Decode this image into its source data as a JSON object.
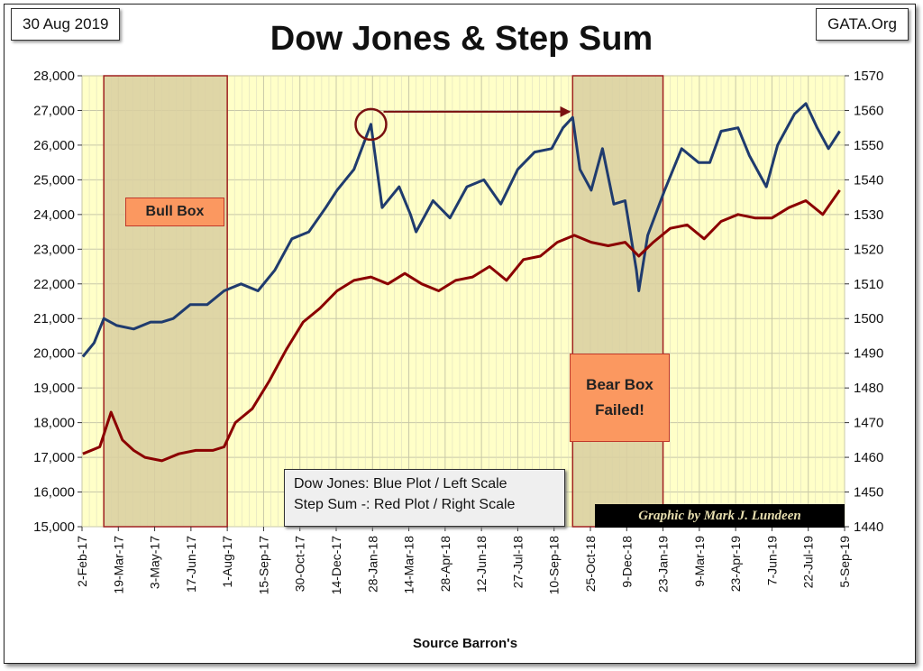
{
  "header": {
    "date": "30 Aug 2019",
    "source_tag": "GATA.Org",
    "title": "Dow Jones & Step Sum"
  },
  "colors": {
    "plot_background": "#ffffc8",
    "box_fill": "#d9cfa0",
    "box_border": "#a02020",
    "dow_line": "#1f3b6e",
    "step_sum_line": "#8b0000",
    "label_fill": "#fb9860"
  },
  "annotations": {
    "bull_box": "Bull Box",
    "bear_box_line1": "Bear Box",
    "bear_box_line2": "Failed!",
    "legend_line1": "Dow Jones: Blue Plot / Left Scale",
    "legend_line2": "Step Sum -: Red Plot / Right Scale",
    "credit": "Graphic by Mark J. Lundeen"
  },
  "chart_data": {
    "type": "line",
    "title": "Dow Jones & Step Sum",
    "xlabel": "Source Barron's",
    "ylabel_left": "",
    "ylabel_right": "",
    "grid": true,
    "x_tick_labels": [
      "2-Feb-17",
      "19-Mar-17",
      "3-May-17",
      "17-Jun-17",
      "1-Aug-17",
      "15-Sep-17",
      "30-Oct-17",
      "14-Dec-17",
      "28-Jan-18",
      "14-Mar-18",
      "28-Apr-18",
      "12-Jun-18",
      "27-Jul-18",
      "10-Sep-18",
      "25-Oct-18",
      "9-Dec-18",
      "23-Jan-19",
      "9-Mar-19",
      "23-Apr-19",
      "7-Jun-19",
      "22-Jul-19",
      "5-Sep-19"
    ],
    "x_range": [
      "2017-02-02",
      "2019-09-05"
    ],
    "ylim_left": [
      15000,
      28000
    ],
    "ylim_right": [
      1440,
      1570
    ],
    "y_ticks_left": [
      "15,000",
      "16,000",
      "17,000",
      "18,000",
      "19,000",
      "20,000",
      "21,000",
      "22,000",
      "23,000",
      "24,000",
      "25,000",
      "26,000",
      "27,000",
      "28,000"
    ],
    "y_ticks_right": [
      "1440",
      "1450",
      "1460",
      "1470",
      "1480",
      "1490",
      "1500",
      "1510",
      "1520",
      "1530",
      "1540",
      "1550",
      "1560",
      "1570"
    ],
    "shaded_regions": [
      {
        "name": "Bull Box",
        "start": "2017-03-01",
        "end": "2017-08-01"
      },
      {
        "name": "Bear Box Failed!",
        "start": "2018-10-03",
        "end": "2019-01-23"
      }
    ],
    "highlight": {
      "circle_at": "2018-01-26",
      "circle_value": 26600,
      "arrow_to": "2018-10-01",
      "arrow_value": 26700
    },
    "series": [
      {
        "name": "Dow Jones",
        "axis": "left",
        "dates": [
          "2017-02-03",
          "2017-02-17",
          "2017-03-01",
          "2017-03-17",
          "2017-04-07",
          "2017-04-28",
          "2017-05-12",
          "2017-05-26",
          "2017-06-16",
          "2017-07-07",
          "2017-07-28",
          "2017-08-18",
          "2017-09-08",
          "2017-09-29",
          "2017-10-20",
          "2017-11-10",
          "2017-12-01",
          "2017-12-15",
          "2018-01-05",
          "2018-01-26",
          "2018-02-09",
          "2018-03-02",
          "2018-03-16",
          "2018-03-23",
          "2018-04-13",
          "2018-05-04",
          "2018-05-25",
          "2018-06-15",
          "2018-07-06",
          "2018-07-27",
          "2018-08-17",
          "2018-09-07",
          "2018-09-21",
          "2018-10-03",
          "2018-10-12",
          "2018-10-26",
          "2018-11-09",
          "2018-11-23",
          "2018-12-07",
          "2018-12-21",
          "2018-12-24",
          "2019-01-04",
          "2019-01-25",
          "2019-02-15",
          "2019-03-08",
          "2019-03-22",
          "2019-04-05",
          "2019-04-26",
          "2019-05-10",
          "2019-05-31",
          "2019-06-14",
          "2019-07-05",
          "2019-07-19",
          "2019-08-02",
          "2019-08-16",
          "2019-08-30"
        ],
        "values": [
          19900,
          20300,
          21000,
          20800,
          20700,
          20900,
          20900,
          21000,
          21400,
          21400,
          21800,
          22000,
          21800,
          22400,
          23300,
          23500,
          24200,
          24700,
          25300,
          26600,
          24200,
          24800,
          24000,
          23500,
          24400,
          23900,
          24800,
          25000,
          24300,
          25300,
          25800,
          25900,
          26500,
          26800,
          25300,
          24700,
          25900,
          24300,
          24400,
          22400,
          21800,
          23400,
          24700,
          25900,
          25500,
          25500,
          26400,
          26500,
          25700,
          24800,
          26000,
          26900,
          27200,
          26500,
          25900,
          26400
        ]
      },
      {
        "name": "Step Sum",
        "axis": "right",
        "dates": [
          "2017-02-03",
          "2017-02-24",
          "2017-03-10",
          "2017-03-24",
          "2017-04-07",
          "2017-04-21",
          "2017-05-12",
          "2017-06-02",
          "2017-06-23",
          "2017-07-14",
          "2017-07-28",
          "2017-08-11",
          "2017-09-01",
          "2017-09-22",
          "2017-10-13",
          "2017-11-03",
          "2017-11-24",
          "2017-12-15",
          "2018-01-05",
          "2018-01-26",
          "2018-02-16",
          "2018-03-09",
          "2018-03-30",
          "2018-04-20",
          "2018-05-11",
          "2018-06-01",
          "2018-06-22",
          "2018-07-13",
          "2018-08-03",
          "2018-08-24",
          "2018-09-14",
          "2018-10-05",
          "2018-10-26",
          "2018-11-16",
          "2018-12-07",
          "2018-12-24",
          "2019-01-11",
          "2019-02-01",
          "2019-02-22",
          "2019-03-15",
          "2019-04-05",
          "2019-04-26",
          "2019-05-17",
          "2019-06-07",
          "2019-06-28",
          "2019-07-19",
          "2019-08-09",
          "2019-08-30"
        ],
        "values": [
          1461,
          1463,
          1473,
          1465,
          1462,
          1460,
          1459,
          1461,
          1462,
          1462,
          1463,
          1470,
          1474,
          1482,
          1491,
          1499,
          1503,
          1508,
          1511,
          1512,
          1510,
          1513,
          1510,
          1508,
          1511,
          1512,
          1515,
          1511,
          1517,
          1518,
          1522,
          1524,
          1522,
          1521,
          1522,
          1518,
          1522,
          1526,
          1527,
          1523,
          1528,
          1530,
          1529,
          1529,
          1532,
          1534,
          1530,
          1537
        ]
      }
    ]
  },
  "axes": {
    "x_title": "Source Barron's"
  }
}
